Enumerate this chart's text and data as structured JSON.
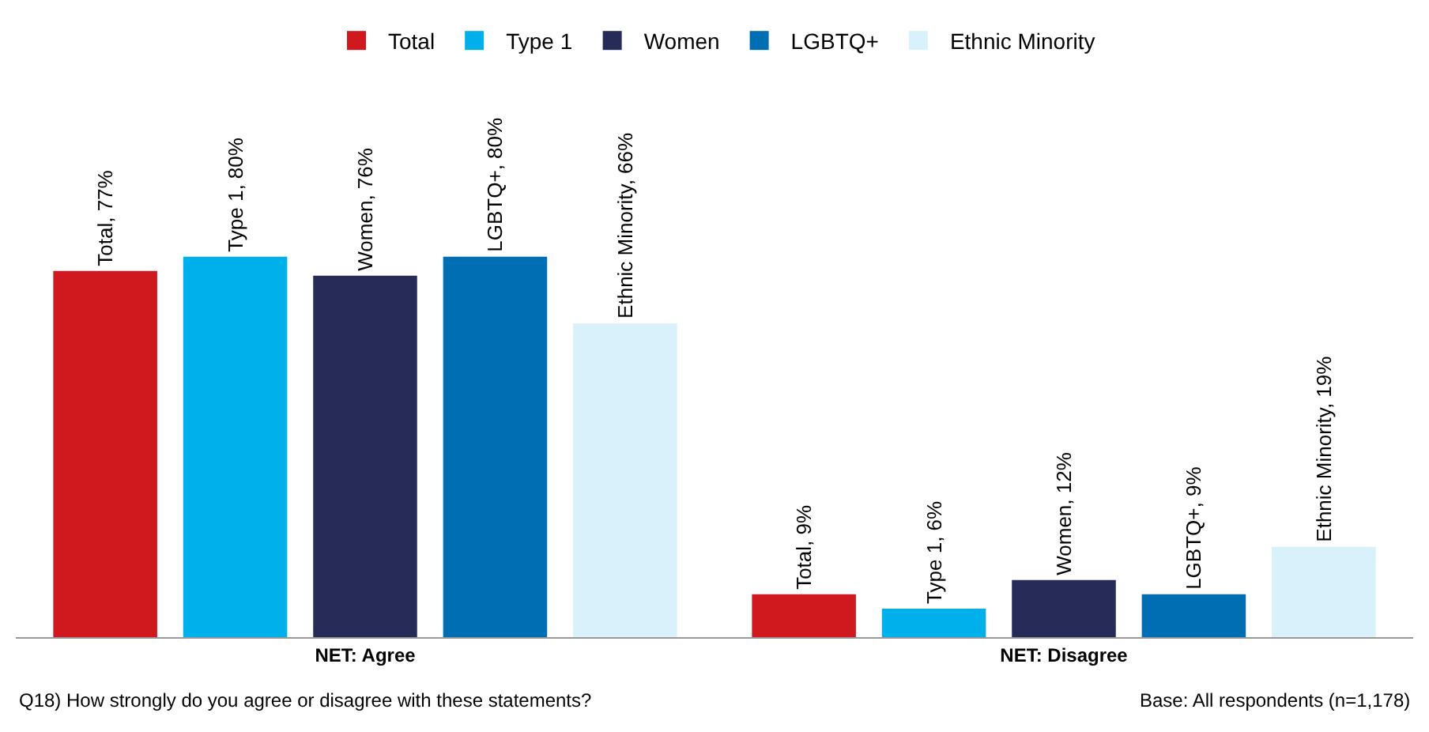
{
  "chart_data": {
    "type": "bar",
    "categories": [
      "NET: Agree",
      "NET: Disagree"
    ],
    "series": [
      {
        "name": "Total",
        "color": "#d0181f",
        "values": [
          77,
          9
        ],
        "value_labels": [
          "Total, 77%",
          "Total, 9%"
        ]
      },
      {
        "name": "Type 1",
        "color": "#00b0eb",
        "values": [
          80,
          6
        ],
        "value_labels": [
          "Type 1, 80%",
          "Type 1, 6%"
        ]
      },
      {
        "name": "Women",
        "color": "#262b58",
        "values": [
          76,
          12
        ],
        "value_labels": [
          "Women, 76%",
          "Women, 12%"
        ]
      },
      {
        "name": "LGBTQ+",
        "color": "#006eb2",
        "values": [
          80,
          9
        ],
        "value_labels": [
          "LGBTQ+, 80%",
          "LGBTQ+, 9%"
        ]
      },
      {
        "name": "Ethnic Minority",
        "color": "#d9f1fb",
        "values": [
          66,
          19
        ],
        "value_labels": [
          "Ethnic Minority, 66%",
          "Ethnic Minority, 19%"
        ]
      }
    ],
    "legend": "top",
    "annotations": [
      "Q18) How strongly do you agree or disagree with these statements?",
      "Base: All respondents (n=1,178)"
    ]
  }
}
